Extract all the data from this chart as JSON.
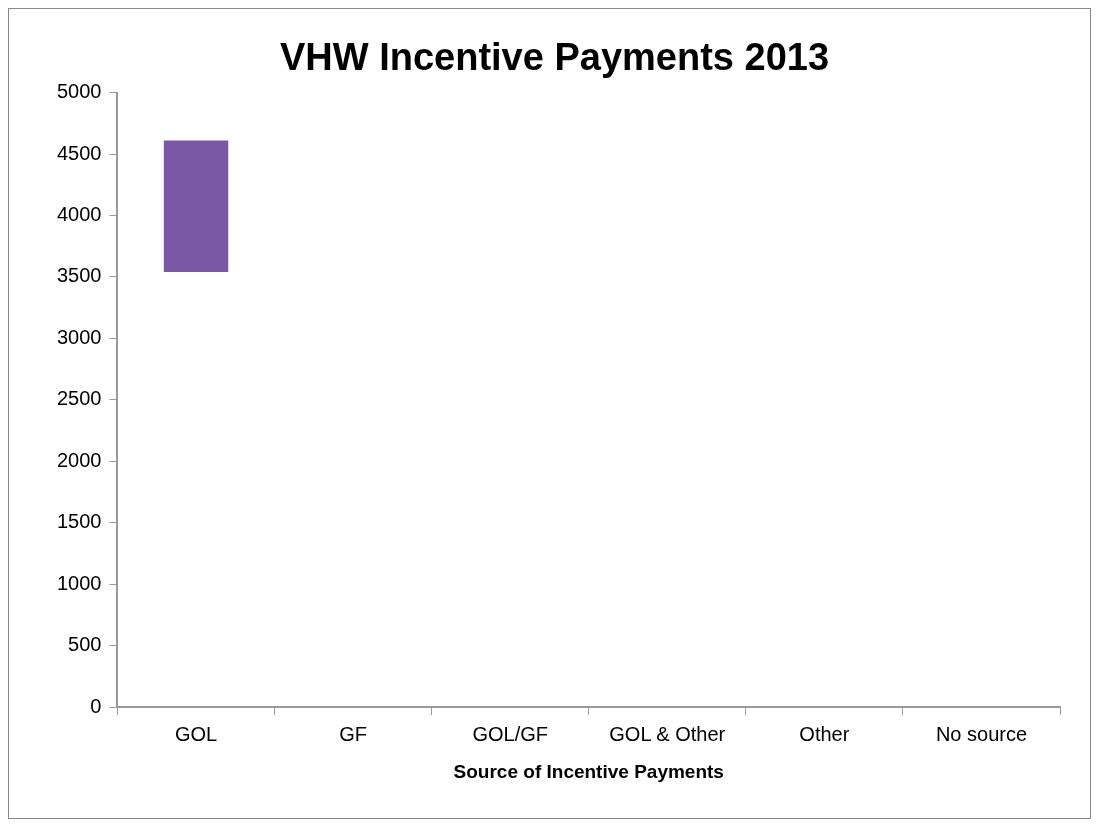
{
  "chart_data": {
    "type": "bar",
    "title": "VHW Incentive Payments 2013",
    "xlabel": "Source of Incentive Payments",
    "categories": [
      "GOL",
      "GF",
      "GOL/GF",
      "GOL & Other",
      "Other",
      "No source"
    ],
    "base": [
      3540,
      null,
      null,
      null,
      null,
      null
    ],
    "values": [
      1070,
      null,
      null,
      null,
      null,
      null
    ],
    "color": "#7b58a6",
    "ylim": [
      0,
      5000
    ],
    "yticks": [
      0,
      500,
      1000,
      1500,
      2000,
      2500,
      3000,
      3500,
      4000,
      4500,
      5000
    ],
    "grid": false,
    "legend": false
  }
}
